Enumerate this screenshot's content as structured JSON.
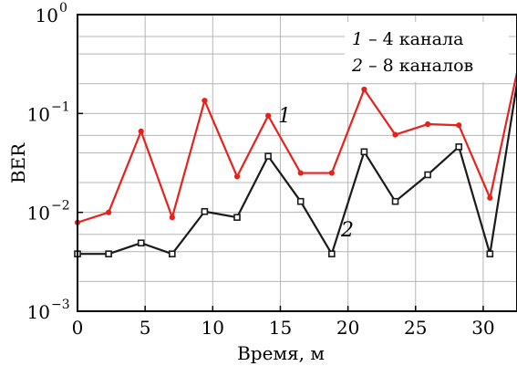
{
  "chart_data": {
    "type": "line",
    "xlabel": "Время, м",
    "ylabel": "BER",
    "xlim": [
      0,
      32.5
    ],
    "ylim": [
      0.001,
      1
    ],
    "yscale": "log",
    "grid": true,
    "x_ticks": [
      0,
      5,
      10,
      15,
      20,
      25,
      30
    ],
    "x_tick_labels": [
      "0",
      "5",
      "10",
      "15",
      "20",
      "25",
      "30"
    ],
    "y_ticks": [
      {
        "value": 1,
        "base": "10",
        "exp": "0"
      },
      {
        "value": 0.1,
        "base": "10",
        "exp": "−1"
      },
      {
        "value": 0.01,
        "base": "10",
        "exp": "−2"
      },
      {
        "value": 0.001,
        "base": "10",
        "exp": "−3"
      }
    ],
    "legend": {
      "placement": "top-right",
      "entries": [
        {
          "num": "1",
          "text": " – 4 канала"
        },
        {
          "num": "2",
          "text": " – 8 каналов"
        }
      ]
    },
    "series": [
      {
        "label": "1",
        "color": "#e8211b",
        "marker": "circle",
        "x": [
          0,
          2.3,
          4.7,
          7.0,
          9.4,
          11.8,
          14.1,
          16.5,
          18.8,
          21.2,
          23.5,
          25.9,
          28.2,
          30.5,
          32.5
        ],
        "y": [
          0.0079,
          0.01,
          0.066,
          0.0089,
          0.135,
          0.023,
          0.095,
          0.025,
          0.025,
          0.175,
          0.061,
          0.078,
          0.076,
          0.014,
          0.26
        ]
      },
      {
        "label": "2",
        "color": "#1a1a1a",
        "marker": "square",
        "x": [
          0,
          2.3,
          4.7,
          7.0,
          9.4,
          11.8,
          14.1,
          16.5,
          18.8,
          21.2,
          23.5,
          25.9,
          28.2,
          30.5,
          32.5
        ],
        "y": [
          0.0038,
          0.0038,
          0.0049,
          0.0038,
          0.0102,
          0.0089,
          0.037,
          0.0129,
          0.0038,
          0.041,
          0.0129,
          0.024,
          0.046,
          0.0038,
          0.2
        ]
      }
    ]
  }
}
